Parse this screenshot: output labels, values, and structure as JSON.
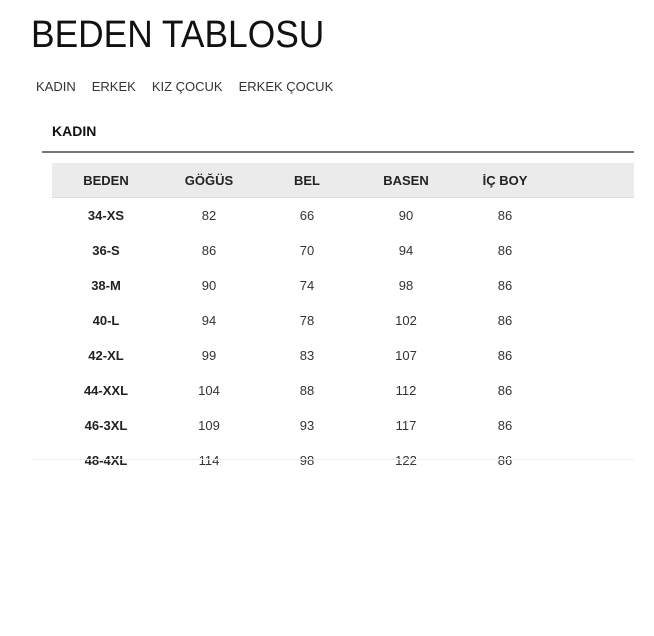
{
  "title": "BEDEN TABLOSU",
  "tabs": [
    "KADIN",
    "ERKEK",
    "KIZ ÇOCUK",
    "ERKEK ÇOCUK"
  ],
  "section": "KADIN",
  "headers": [
    "BEDEN",
    "GÖĞÜS",
    "BEL",
    "BASEN",
    "İÇ BOY"
  ],
  "rows": [
    [
      "34-XS",
      "82",
      "66",
      "90",
      "86"
    ],
    [
      "36-S",
      "86",
      "70",
      "94",
      "86"
    ],
    [
      "38-M",
      "90",
      "74",
      "98",
      "86"
    ],
    [
      "40-L",
      "94",
      "78",
      "102",
      "86"
    ],
    [
      "42-XL",
      "99",
      "83",
      "107",
      "86"
    ],
    [
      "44-XXL",
      "104",
      "88",
      "112",
      "86"
    ],
    [
      "46-3XL",
      "109",
      "93",
      "117",
      "86"
    ],
    [
      "48-4XL",
      "114",
      "98",
      "122",
      "86"
    ]
  ]
}
